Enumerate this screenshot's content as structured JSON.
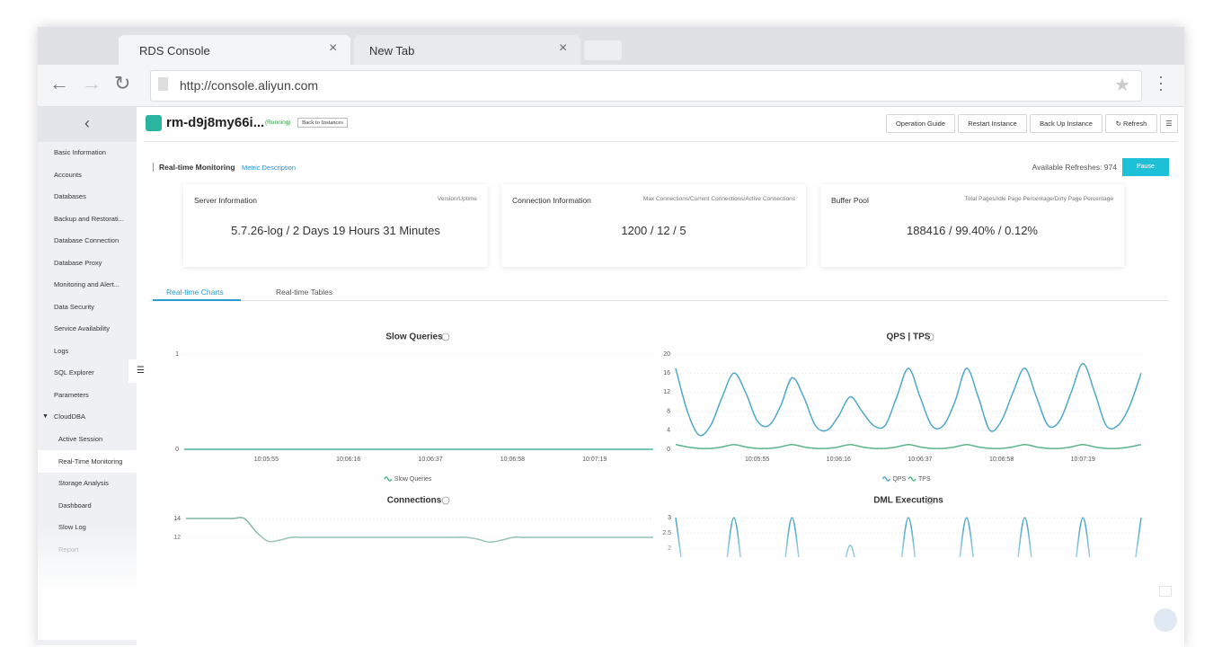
{
  "browser": {
    "tabs": [
      "RDS Console",
      "New Tab"
    ],
    "url": "http://console.aliyun.com"
  },
  "sidebar": {
    "items": [
      "Basic Information",
      "Accounts",
      "Databases",
      "Backup and Restorati...",
      "Database Connection",
      "Database Proxy",
      "Monitoring and Alert...",
      "Data Security",
      "Service Availability",
      "Logs",
      "SQL Explorer",
      "Parameters",
      "CloudDBA"
    ],
    "subitems": [
      "Active Session",
      "Real-Time Monitoring",
      "Storage Analysis",
      "Dashboard",
      "Slow Log",
      "Report"
    ]
  },
  "header": {
    "instance": "rm-d9j8my66i...",
    "status": "(Running)",
    "back": "Back to Instances",
    "buttons": [
      "Operation Guide",
      "Restart Instance",
      "Back Up Instance",
      "Refresh"
    ]
  },
  "section": {
    "title": "Real-time Monitoring",
    "link": "Metric Description",
    "refreshes": "Available Refreshes: 974",
    "pause": "Pause"
  },
  "cards": [
    {
      "title": "Server Information",
      "subtitle": "Version/Uptime",
      "value": "5.7.26-log / 2 Days 19 Hours 31 Minutes"
    },
    {
      "title": "Connection Information",
      "subtitle": "Max Connections/Current Connections/Active Connections",
      "value": "1200 / 12 / 5"
    },
    {
      "title": "Buffer Pool",
      "subtitle": "Total Pages/Idle Page Percentage/Dirty Page Percentage",
      "value": "188416 / 99.40% / 0.12%"
    }
  ],
  "tabs": [
    "Real-time Charts",
    "Real-time Tables"
  ],
  "charts": [
    {
      "type": "line",
      "title": "Slow Queries",
      "categories": [
        null,
        null,
        null,
        null,
        null,
        null,
        null,
        "10:05:55",
        null,
        null,
        null,
        null,
        null,
        null,
        "10:06:16",
        null,
        null,
        null,
        null,
        null,
        null,
        "10:06:37",
        null,
        null,
        null,
        null,
        null,
        null,
        "10:06:58",
        null,
        null,
        null,
        null,
        null,
        null,
        "10:07:19",
        null,
        null,
        null,
        null,
        null
      ],
      "ylim": [
        0,
        1
      ],
      "yticks": [
        0,
        1
      ],
      "grid": true,
      "series": [
        {
          "name": "Slow Queries",
          "color": "#4db39a",
          "values": [
            0,
            0,
            0,
            0,
            0,
            0,
            0,
            0,
            0,
            0,
            0,
            0,
            0,
            0,
            0,
            0,
            0,
            0,
            0,
            0,
            0,
            0,
            0,
            0,
            0,
            0,
            0,
            0,
            0,
            0,
            0,
            0,
            0,
            0,
            0,
            0,
            0,
            0,
            0,
            0,
            0
          ]
        }
      ]
    },
    {
      "type": "line",
      "title": "QPS | TPS",
      "categories": [
        null,
        null,
        null,
        null,
        null,
        null,
        null,
        "10:05:55",
        null,
        null,
        null,
        null,
        null,
        null,
        "10:06:16",
        null,
        null,
        null,
        null,
        null,
        null,
        "10:06:37",
        null,
        null,
        null,
        null,
        null,
        null,
        "10:06:58",
        null,
        null,
        null,
        null,
        null,
        null,
        "10:07:19",
        null,
        null,
        null,
        null,
        null
      ],
      "ylim": [
        0,
        20
      ],
      "yticks": [
        0,
        4,
        8,
        12,
        16,
        20
      ],
      "grid": true,
      "series": [
        {
          "name": "QPS",
          "color": "#4fa8c9",
          "values": [
            17,
            8,
            3,
            5,
            11,
            16,
            12,
            6,
            5,
            9,
            15,
            11,
            5,
            4,
            7,
            11,
            8,
            5,
            5,
            11,
            17,
            11,
            5,
            5,
            10,
            17,
            11,
            4,
            6,
            12,
            17,
            11,
            5,
            6,
            12,
            18,
            12,
            5,
            5,
            9,
            16
          ]
        },
        {
          "name": "TPS",
          "color": "#5bb58a",
          "values": [
            1,
            0.5,
            0.2,
            0.2,
            0.5,
            1,
            0.5,
            0.2,
            0.2,
            0.5,
            1,
            0.5,
            0.2,
            0.2,
            0.5,
            1,
            0.5,
            0.2,
            0.2,
            0.5,
            1,
            0.5,
            0.2,
            0.2,
            0.5,
            1,
            0.5,
            0.2,
            0.2,
            0.5,
            1,
            0.5,
            0.2,
            0.2,
            0.5,
            1,
            0.5,
            0.2,
            0.2,
            0.5,
            1
          ]
        }
      ]
    },
    {
      "type": "line",
      "title": "Connections",
      "ylim": [
        0,
        14.5
      ],
      "yticks": [
        12,
        14
      ],
      "grid": true,
      "series": [
        {
          "name": "Connections",
          "color": "#7fb3a3",
          "values": [
            14,
            14,
            14,
            14,
            14,
            14,
            12.6,
            11.6,
            11.7,
            12,
            12,
            12,
            12,
            12,
            12,
            12,
            12,
            12,
            12,
            12,
            12,
            12,
            12,
            12,
            12,
            11.8,
            11.5,
            11.7,
            12,
            12,
            12,
            12,
            12,
            12,
            12,
            12,
            12,
            12,
            12,
            12,
            12
          ]
        }
      ]
    },
    {
      "type": "line",
      "title": "DML Executions",
      "ylim": [
        0,
        3.15
      ],
      "yticks": [
        2,
        2.5,
        3
      ],
      "grid": true,
      "series": [
        {
          "name": "DML Executions",
          "color": "#4fa8c9",
          "values": [
            3,
            0.5,
            0,
            0,
            0.5,
            3,
            0.5,
            0,
            0,
            0.5,
            3,
            0.5,
            0,
            0,
            0.5,
            2.1,
            0.5,
            0,
            0,
            0.5,
            3,
            0.5,
            0,
            0,
            0.5,
            3,
            0.5,
            0,
            0,
            0.5,
            3,
            0.5,
            0,
            0,
            0.5,
            3,
            0.5,
            0,
            0,
            0.5,
            3
          ]
        }
      ]
    }
  ]
}
